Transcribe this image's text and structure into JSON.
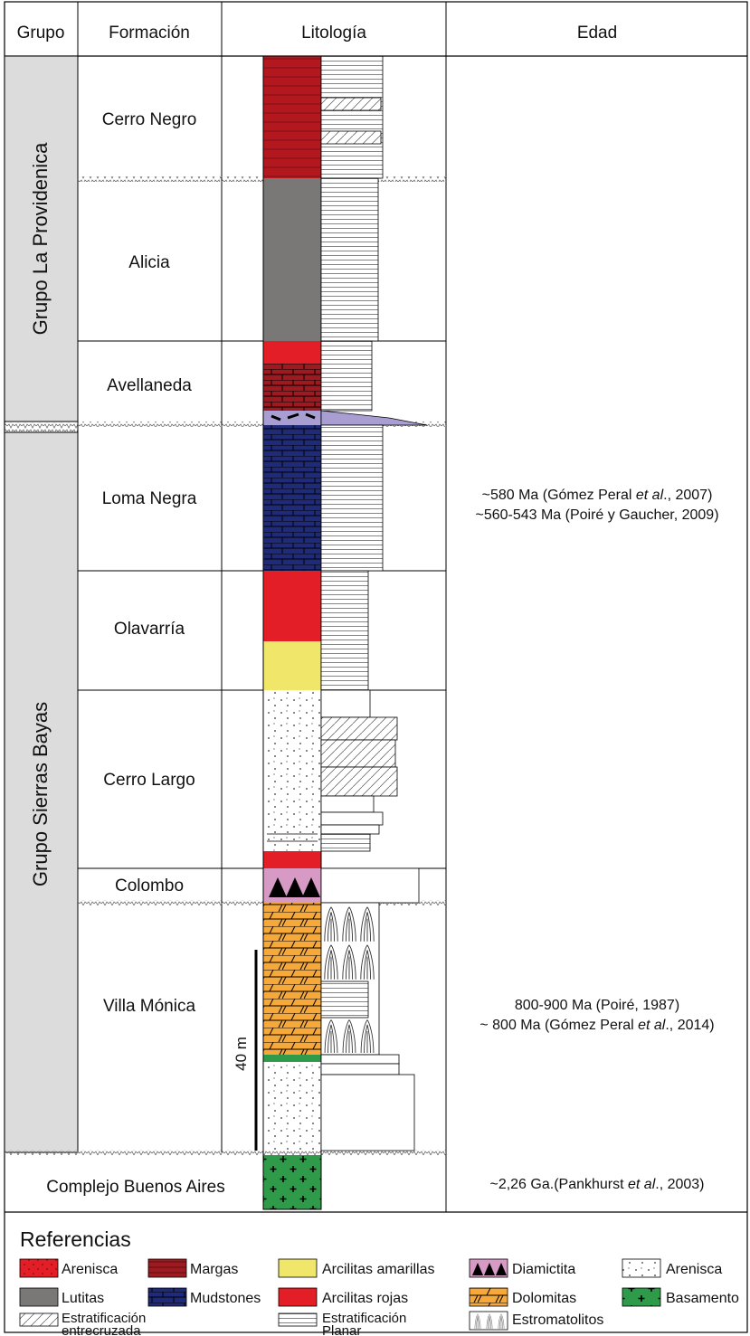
{
  "header": {
    "grupo": "Grupo",
    "formacion": "Formación",
    "litologia": "Litología",
    "edad": "Edad"
  },
  "groups": [
    {
      "name": "Grupo La Providenica"
    },
    {
      "name": "Grupo Sierras Bayas"
    }
  ],
  "formations": [
    {
      "name": "Cerro Negro"
    },
    {
      "name": "Alicia"
    },
    {
      "name": "Avellaneda"
    },
    {
      "name": "Loma Negra"
    },
    {
      "name": "Olavarría"
    },
    {
      "name": "Cerro Largo"
    },
    {
      "name": "Colombo"
    },
    {
      "name": "Villa Mónica"
    },
    {
      "name": "Complejo Buenos Aires"
    }
  ],
  "ages": {
    "upper_1": "~580 Ma (Gómez Peral ",
    "upper_1_em": "et al",
    "upper_1_tail": "., 2007)",
    "upper_2": "~560-543 Ma (Poiré y Gaucher, 2009)",
    "middle_1": "800-900 Ma (Poiré, 1987)",
    "middle_2": "~ 800 Ma (Gómez Peral ",
    "middle_2_em": "et al",
    "middle_2_tail": "., 2014)",
    "lower_1": "~2,26 Ga.(Pankhurst ",
    "lower_1_em": "et al",
    "lower_1_tail": "., 2003)"
  },
  "scale_label": "40 m",
  "references": {
    "title": "Referencias",
    "items": [
      {
        "label": "Arenisca"
      },
      {
        "label": "Margas"
      },
      {
        "label": "Arcilitas amarillas"
      },
      {
        "label": "Diamictita"
      },
      {
        "label": "Arenisca"
      },
      {
        "label": "Lutitas"
      },
      {
        "label": "Mudstones"
      },
      {
        "label": "Arcilitas rojas"
      },
      {
        "label": "Dolomitas"
      },
      {
        "label": "Basamento"
      },
      {
        "label": "Estratificación",
        "label2": "entrecruzada"
      },
      {
        "label": "Estratificación",
        "label2": "Planar"
      },
      {
        "label": "Estromatolitos"
      }
    ]
  },
  "colors": {
    "red": "#e41e26",
    "darkred": "#b3181f",
    "marl": "#9c1a20",
    "gray": "#7a7877",
    "navy": "#1f2a78",
    "yellow": "#f0e66a",
    "pink": "#d79ac4",
    "orange": "#f6a83a",
    "green": "#2f9a4a",
    "lavender": "#a99ed2",
    "groupbg": "#dcdcdc"
  }
}
